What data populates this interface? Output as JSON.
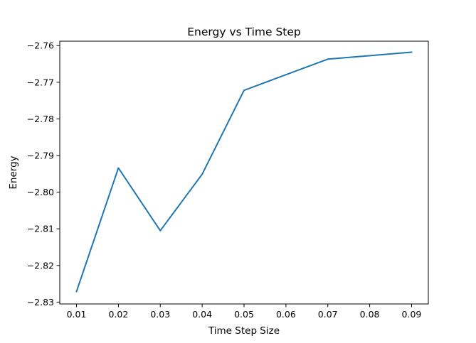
{
  "chart_data": {
    "type": "line",
    "title": "Energy vs Time Step",
    "xlabel": "Time Step Size",
    "ylabel": "Energy",
    "xlim": [
      0.006,
      0.094
    ],
    "ylim": [
      -2.8305,
      -2.7588
    ],
    "xticks": [
      0.01,
      0.02,
      0.03,
      0.04,
      0.05,
      0.06,
      0.07,
      0.08,
      0.09
    ],
    "xtick_labels": [
      "0.01",
      "0.02",
      "0.03",
      "0.04",
      "0.05",
      "0.06",
      "0.07",
      "0.08",
      "0.09"
    ],
    "yticks": [
      -2.83,
      -2.82,
      -2.81,
      -2.8,
      -2.79,
      -2.78,
      -2.77,
      -2.76
    ],
    "ytick_labels": [
      "−2.83",
      "−2.82",
      "−2.81",
      "−2.80",
      "−2.79",
      "−2.78",
      "−2.77",
      "−2.76"
    ],
    "grid": false,
    "legend": false,
    "series": [
      {
        "color": "#1f77b4",
        "x": [
          0.01,
          0.02,
          0.03,
          0.04,
          0.05,
          0.07,
          0.09
        ],
        "y": [
          -2.8271,
          -2.7934,
          -2.8105,
          -2.7951,
          -2.7722,
          -2.7637,
          -2.7618
        ]
      }
    ]
  }
}
